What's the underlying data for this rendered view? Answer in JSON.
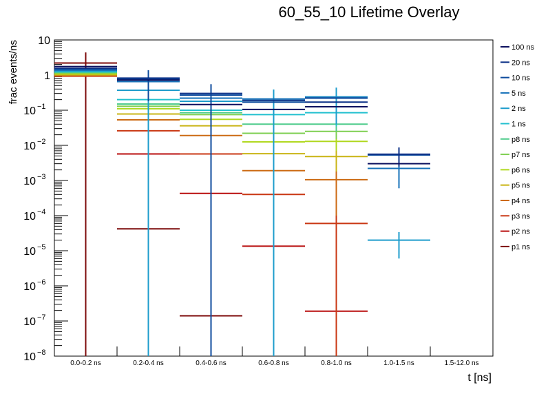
{
  "chart_data": {
    "type": "bar",
    "subtype": "histogram-errorbar-overlay",
    "title": "60_55_10 Lifetime Overlay",
    "xlabel": "t [ns]",
    "ylabel": "frac events/ns",
    "yscale": "log",
    "ylim": [
      1e-08,
      10
    ],
    "yticks": [
      {
        "value": 10,
        "label": "10",
        "exp": ""
      },
      {
        "value": 1,
        "label": "1",
        "exp": ""
      },
      {
        "value": 0.1,
        "label": "10",
        "exp": "−1"
      },
      {
        "value": 0.01,
        "label": "10",
        "exp": "−2"
      },
      {
        "value": 0.001,
        "label": "10",
        "exp": "−3"
      },
      {
        "value": 0.0001,
        "label": "10",
        "exp": "−4"
      },
      {
        "value": 1e-05,
        "label": "10",
        "exp": "−5"
      },
      {
        "value": 1e-06,
        "label": "10",
        "exp": "−6"
      },
      {
        "value": 1e-07,
        "label": "10",
        "exp": "−7"
      },
      {
        "value": 1e-08,
        "label": "10",
        "exp": "−8"
      }
    ],
    "categories": [
      "0.0-0.2 ns",
      "0.2-0.4 ns",
      "0.4-0.6 ns",
      "0.6-0.8 ns",
      "0.8-1.0 ns",
      "1.0-1.5 ns",
      "1.5-12.0 ns"
    ],
    "legend_position": "right",
    "grid": false,
    "series": [
      {
        "name": "100 ns",
        "color": "#0b0f5e",
        "values": [
          1.75,
          0.72,
          0.145,
          0.105,
          0.125,
          0.003,
          null
        ],
        "err": [
          0,
          0,
          0,
          0,
          0,
          0,
          null
        ]
      },
      {
        "name": "20 ns",
        "color": "#0a2f86",
        "values": [
          1.55,
          0.82,
          0.3,
          0.19,
          0.17,
          0.0056,
          null
        ],
        "err": [
          0,
          0,
          0,
          0,
          0,
          0.0031,
          null
        ]
      },
      {
        "name": "10 ns",
        "color": "#0c4a9c",
        "values": [
          1.5,
          0.78,
          0.27,
          0.17,
          0.22,
          0.0053,
          null
        ],
        "err": [
          0,
          0.6,
          0.28,
          0,
          0,
          0,
          null
        ]
      },
      {
        "name": "5 ns",
        "color": "#1570b8",
        "values": [
          1.38,
          0.65,
          0.22,
          0.21,
          0.23,
          0.0022,
          null
        ],
        "err": [
          0,
          0,
          0,
          0,
          0,
          0.0016,
          null
        ]
      },
      {
        "name": "2 ns",
        "color": "#1d9ccc",
        "values": [
          1.32,
          0.37,
          0.18,
          0.19,
          0.24,
          2e-05,
          null
        ],
        "err": [
          0,
          0.8,
          0.25,
          0.2,
          0.2,
          1.4e-05,
          null
        ]
      },
      {
        "name": "1 ns",
        "color": "#22c0cf",
        "values": [
          1.25,
          0.2,
          0.1,
          0.075,
          0.085,
          null,
          null
        ],
        "err": [
          0,
          0.12,
          0.06,
          0.04,
          0.05,
          null,
          null
        ]
      },
      {
        "name": "p8 ns",
        "color": "#4fcb8c",
        "values": [
          1.2,
          0.15,
          0.085,
          0.04,
          0.04,
          null,
          null
        ],
        "err": [
          0,
          0.05,
          0.03,
          0.015,
          0.015,
          null,
          null
        ]
      },
      {
        "name": "p7 ns",
        "color": "#7ecf50",
        "values": [
          1.15,
          0.13,
          0.075,
          0.022,
          0.025,
          null,
          null
        ],
        "err": [
          0,
          0.04,
          0.02,
          0.01,
          0.01,
          null,
          null
        ]
      },
      {
        "name": "p6 ns",
        "color": "#b0d81f",
        "values": [
          1.08,
          0.11,
          0.055,
          0.0125,
          0.013,
          null,
          null
        ],
        "err": [
          0,
          0.03,
          0.02,
          0.006,
          0.006,
          null,
          null
        ]
      },
      {
        "name": "p5 ns",
        "color": "#c9b414",
        "values": [
          1.02,
          0.078,
          0.036,
          0.0058,
          0.0048,
          null,
          null
        ],
        "err": [
          0,
          0.02,
          0.015,
          0.004,
          0.003,
          null,
          null
        ]
      },
      {
        "name": "p4 ns",
        "color": "#cc6a13",
        "values": [
          0.97,
          0.053,
          0.019,
          0.0019,
          0.00105,
          null,
          null
        ],
        "err": [
          0,
          0.02,
          0.01,
          0.0018,
          0.00095,
          null,
          null
        ]
      },
      {
        "name": "p3 ns",
        "color": "#c93713",
        "values": [
          0.93,
          0.026,
          0.0057,
          0.0004,
          6e-05,
          null,
          null
        ],
        "err": [
          0,
          0.02,
          0.004,
          0.0004,
          6e-05,
          null,
          null
        ]
      },
      {
        "name": "p2 ns",
        "color": "#b80c0c",
        "values": [
          1.0,
          0.0057,
          0.00043,
          1.35e-05,
          1.9e-07,
          null,
          null
        ],
        "err": [
          0,
          0.0057,
          0.00043,
          1.35e-05,
          1.9e-07,
          null,
          null
        ]
      },
      {
        "name": "p1 ns",
        "color": "#7c0a0a",
        "values": [
          2.2,
          4.2e-05,
          1.4e-07,
          null,
          null,
          null,
          null
        ],
        "err": [
          2.2,
          4.2e-05,
          1.4e-07,
          null,
          null,
          null,
          null
        ]
      }
    ]
  }
}
